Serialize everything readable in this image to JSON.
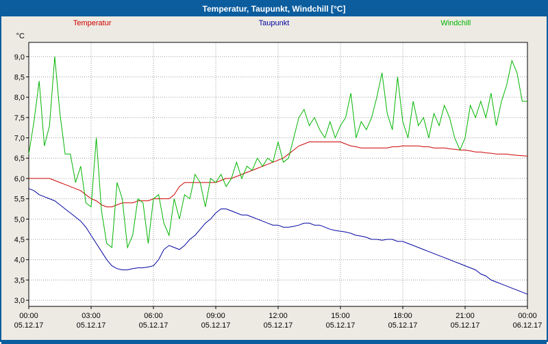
{
  "title": "Temperatur, Taupunkt, Windchill [°C]",
  "colors": {
    "titlebar_bg": "#0b5d9e",
    "titlebar_text": "#ffffff",
    "frame": "#0b5d9e",
    "page_bg": "#edeae3",
    "plot_bg": "#ffffff",
    "grid": "#999999",
    "axis": "#000000"
  },
  "chart_data": {
    "type": "line",
    "title": "Temperatur, Taupunkt, Windchill [°C]",
    "xlabel": "",
    "ylabel": "°C",
    "ylim": [
      3.0,
      9.0
    ],
    "x_start": 0,
    "x_end": 24,
    "grid": "dotted",
    "legend_position": "top",
    "y_ticks": [
      {
        "v": 3.0,
        "label": "3,0"
      },
      {
        "v": 3.5,
        "label": "3,5"
      },
      {
        "v": 4.0,
        "label": "4,0"
      },
      {
        "v": 4.5,
        "label": "4,5"
      },
      {
        "v": 5.0,
        "label": "5,0"
      },
      {
        "v": 5.5,
        "label": "5,5"
      },
      {
        "v": 6.0,
        "label": "6,0"
      },
      {
        "v": 6.5,
        "label": "6,5"
      },
      {
        "v": 7.0,
        "label": "7,0"
      },
      {
        "v": 7.5,
        "label": "7,5"
      },
      {
        "v": 8.0,
        "label": "8,0"
      },
      {
        "v": 8.5,
        "label": "8,5"
      },
      {
        "v": 9.0,
        "label": "9,0"
      }
    ],
    "x_ticks": [
      {
        "h": 0,
        "time": "00:00",
        "date": "05.12.17"
      },
      {
        "h": 3,
        "time": "03:00",
        "date": "05.12.17"
      },
      {
        "h": 6,
        "time": "06:00",
        "date": "05.12.17"
      },
      {
        "h": 9,
        "time": "09:00",
        "date": "05.12.17"
      },
      {
        "h": 12,
        "time": "12:00",
        "date": "05.12.17"
      },
      {
        "h": 15,
        "time": "15:00",
        "date": "05.12.17"
      },
      {
        "h": 18,
        "time": "18:00",
        "date": "05.12.17"
      },
      {
        "h": 21,
        "time": "21:00",
        "date": "05.12.17"
      },
      {
        "h": 24,
        "time": "00:00",
        "date": "06.12.17"
      }
    ],
    "series": [
      {
        "name": "Temperatur",
        "color": "#cc0000",
        "values": [
          6.0,
          6.0,
          6.0,
          6.0,
          6.0,
          5.95,
          5.9,
          5.85,
          5.8,
          5.75,
          5.7,
          5.6,
          5.5,
          5.45,
          5.35,
          5.3,
          5.3,
          5.35,
          5.4,
          5.4,
          5.4,
          5.45,
          5.45,
          5.45,
          5.5,
          5.5,
          5.5,
          5.5,
          5.6,
          5.8,
          5.9,
          5.9,
          5.9,
          5.9,
          5.9,
          5.9,
          5.9,
          5.95,
          6.0,
          6.0,
          6.05,
          6.1,
          6.15,
          6.2,
          6.25,
          6.3,
          6.35,
          6.4,
          6.45,
          6.5,
          6.6,
          6.7,
          6.8,
          6.85,
          6.9,
          6.9,
          6.9,
          6.9,
          6.9,
          6.9,
          6.9,
          6.85,
          6.8,
          6.78,
          6.75,
          6.75,
          6.75,
          6.75,
          6.75,
          6.75,
          6.78,
          6.78,
          6.8,
          6.8,
          6.8,
          6.8,
          6.78,
          6.78,
          6.75,
          6.75,
          6.75,
          6.73,
          6.72,
          6.7,
          6.7,
          6.68,
          6.65,
          6.65,
          6.63,
          6.62,
          6.6,
          6.6,
          6.6,
          6.58,
          6.57,
          6.56,
          6.55
        ]
      },
      {
        "name": "Taupunkt",
        "color": "#0000a0",
        "values": [
          5.75,
          5.7,
          5.6,
          5.55,
          5.5,
          5.45,
          5.35,
          5.25,
          5.15,
          5.05,
          4.95,
          4.8,
          4.6,
          4.4,
          4.2,
          4.0,
          3.85,
          3.78,
          3.75,
          3.75,
          3.78,
          3.8,
          3.8,
          3.82,
          3.85,
          4.0,
          4.25,
          4.35,
          4.3,
          4.25,
          4.35,
          4.5,
          4.6,
          4.75,
          4.9,
          5.0,
          5.15,
          5.25,
          5.25,
          5.2,
          5.15,
          5.1,
          5.1,
          5.05,
          5.0,
          4.95,
          4.9,
          4.85,
          4.85,
          4.8,
          4.8,
          4.82,
          4.85,
          4.9,
          4.9,
          4.85,
          4.85,
          4.8,
          4.75,
          4.72,
          4.7,
          4.68,
          4.65,
          4.6,
          4.58,
          4.55,
          4.5,
          4.5,
          4.48,
          4.5,
          4.5,
          4.45,
          4.45,
          4.4,
          4.35,
          4.3,
          4.25,
          4.2,
          4.15,
          4.1,
          4.05,
          4.0,
          3.95,
          3.9,
          3.85,
          3.8,
          3.75,
          3.65,
          3.6,
          3.5,
          3.45,
          3.4,
          3.35,
          3.3,
          3.25,
          3.2,
          3.15
        ]
      },
      {
        "name": "Windchill",
        "color": "#00b400",
        "values": [
          6.6,
          7.4,
          8.4,
          6.8,
          7.3,
          9.0,
          7.6,
          6.6,
          6.6,
          5.9,
          6.3,
          5.4,
          5.3,
          7.0,
          5.2,
          4.4,
          4.3,
          5.9,
          5.5,
          4.3,
          4.6,
          5.5,
          5.4,
          4.4,
          5.5,
          5.6,
          4.9,
          4.6,
          5.5,
          5.0,
          5.6,
          5.5,
          6.1,
          5.9,
          5.3,
          6.0,
          5.9,
          6.1,
          5.8,
          6.0,
          6.4,
          6.0,
          6.3,
          6.2,
          6.5,
          6.3,
          6.5,
          6.4,
          6.9,
          6.4,
          6.5,
          7.0,
          7.5,
          7.7,
          7.3,
          7.5,
          7.2,
          7.0,
          7.4,
          7.0,
          7.3,
          7.5,
          8.1,
          7.0,
          7.4,
          7.2,
          7.5,
          8.0,
          8.6,
          7.6,
          7.2,
          8.5,
          7.4,
          7.0,
          7.9,
          7.3,
          7.5,
          7.0,
          7.6,
          7.3,
          7.8,
          7.5,
          7.0,
          6.7,
          7.0,
          7.8,
          7.5,
          7.9,
          7.5,
          8.1,
          7.3,
          7.9,
          8.3,
          8.9,
          8.6,
          7.9,
          7.9
        ]
      }
    ]
  }
}
